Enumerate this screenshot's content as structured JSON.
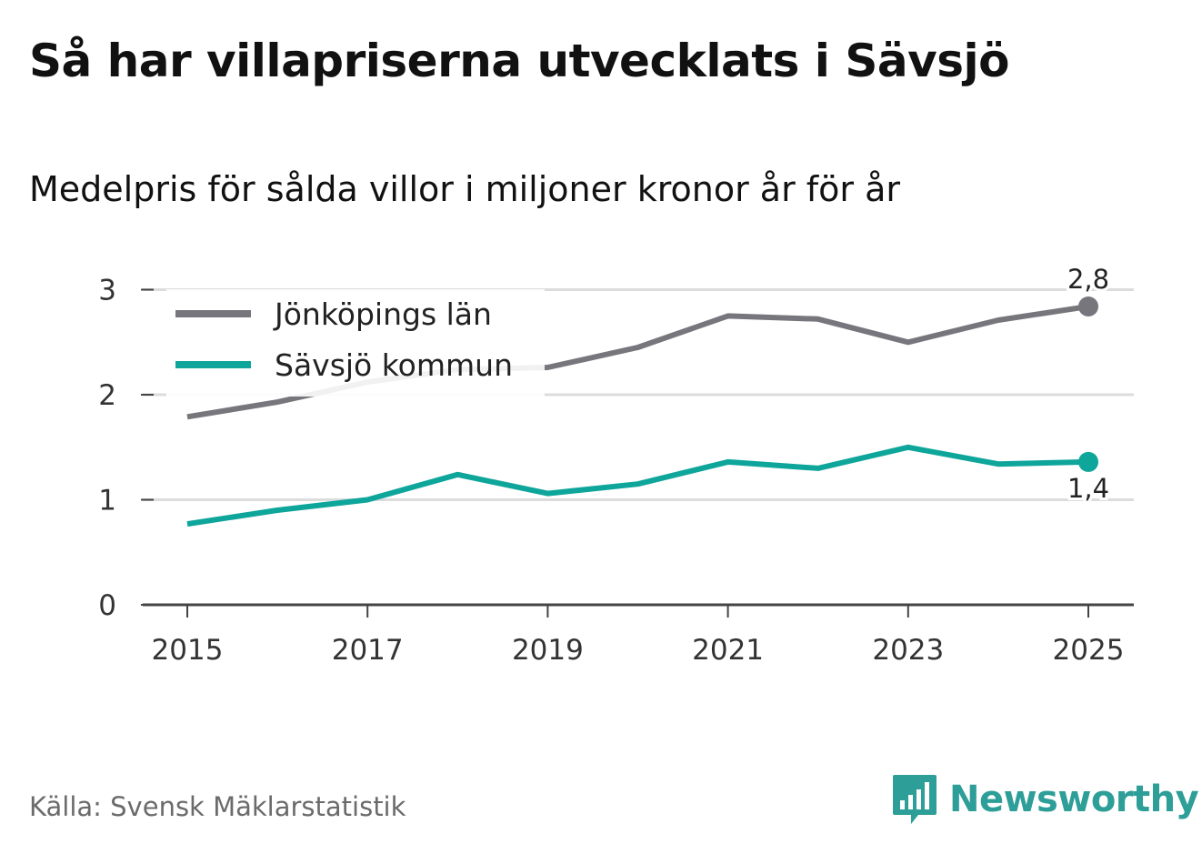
{
  "title": "Så har villapriserna utvecklats i Sävsjö",
  "subtitle": "Medelpris för sålda villor i miljoner kronor år för år",
  "source": "Källa: Svensk Mäklarstatistik",
  "brand": {
    "name": "Newsworthy",
    "icon": "newsworthy-logo-icon",
    "color": "#2e9e98"
  },
  "chart_data": {
    "type": "line",
    "title": "Så har villapriserna utvecklats i Sävsjö",
    "subtitle": "Medelpris för sålda villor i miljoner kronor år för år",
    "xlabel": "",
    "ylabel": "",
    "x": [
      2015,
      2016,
      2017,
      2018,
      2019,
      2020,
      2021,
      2022,
      2023,
      2024,
      2025
    ],
    "x_ticks": [
      "2015",
      "2017",
      "2019",
      "2021",
      "2023",
      "2025"
    ],
    "y_ticks": [
      "0",
      "1",
      "2",
      "3"
    ],
    "ylim": [
      0,
      3.2
    ],
    "xlim": [
      2015,
      2025
    ],
    "grid": true,
    "legend_position": "top-left",
    "series": [
      {
        "name": "Jönköpings län",
        "color": "#76767c",
        "values": [
          1.79,
          1.93,
          2.12,
          2.24,
          2.26,
          2.45,
          2.75,
          2.72,
          2.5,
          2.71,
          2.84
        ],
        "end_label": "2,8"
      },
      {
        "name": "Sävsjö kommun",
        "color": "#0ea59b",
        "values": [
          0.77,
          0.9,
          1.0,
          1.24,
          1.06,
          1.15,
          1.36,
          1.3,
          1.5,
          1.34,
          1.36
        ],
        "end_label": "1,4"
      }
    ]
  }
}
